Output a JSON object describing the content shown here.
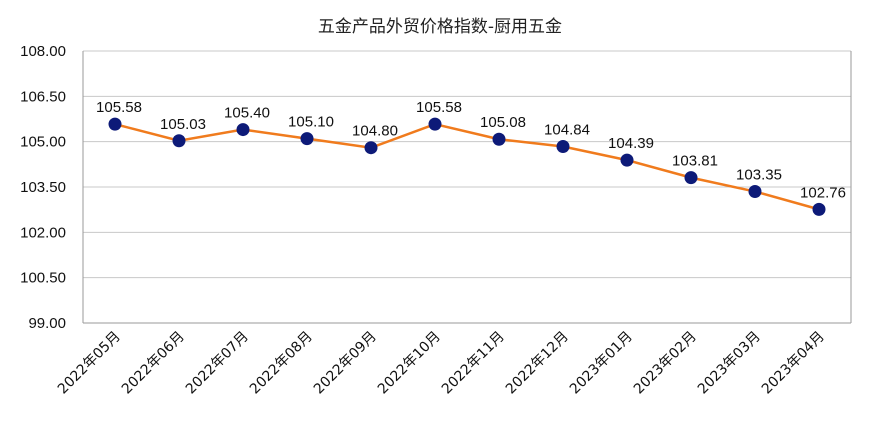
{
  "chart_data": {
    "type": "line",
    "title": "五金产品外贸价格指数-厨用五金",
    "categories": [
      "2022年05月",
      "2022年06月",
      "2022年07月",
      "2022年08月",
      "2022年09月",
      "2022年10月",
      "2022年11月",
      "2022年12月",
      "2023年01月",
      "2023年02月",
      "2023年03月",
      "2023年04月"
    ],
    "series": [
      {
        "values": [
          105.58,
          105.03,
          105.4,
          105.1,
          104.8,
          105.58,
          105.08,
          104.84,
          104.39,
          103.81,
          103.35,
          102.76
        ],
        "labels": [
          "105.58",
          "105.03",
          "105.40",
          "105.10",
          "104.80",
          "105.58",
          "105.08",
          "104.84",
          "104.39",
          "103.81",
          "103.35",
          "102.76"
        ]
      }
    ],
    "ylim": [
      99.0,
      108.0
    ],
    "yticks": [
      "99.00",
      "100.50",
      "102.00",
      "103.50",
      "105.00",
      "106.50",
      "108.00"
    ],
    "xlabel": "",
    "ylabel": "",
    "grid": true,
    "line_color": "#f07b1d",
    "marker_color": "#0d1a78"
  }
}
